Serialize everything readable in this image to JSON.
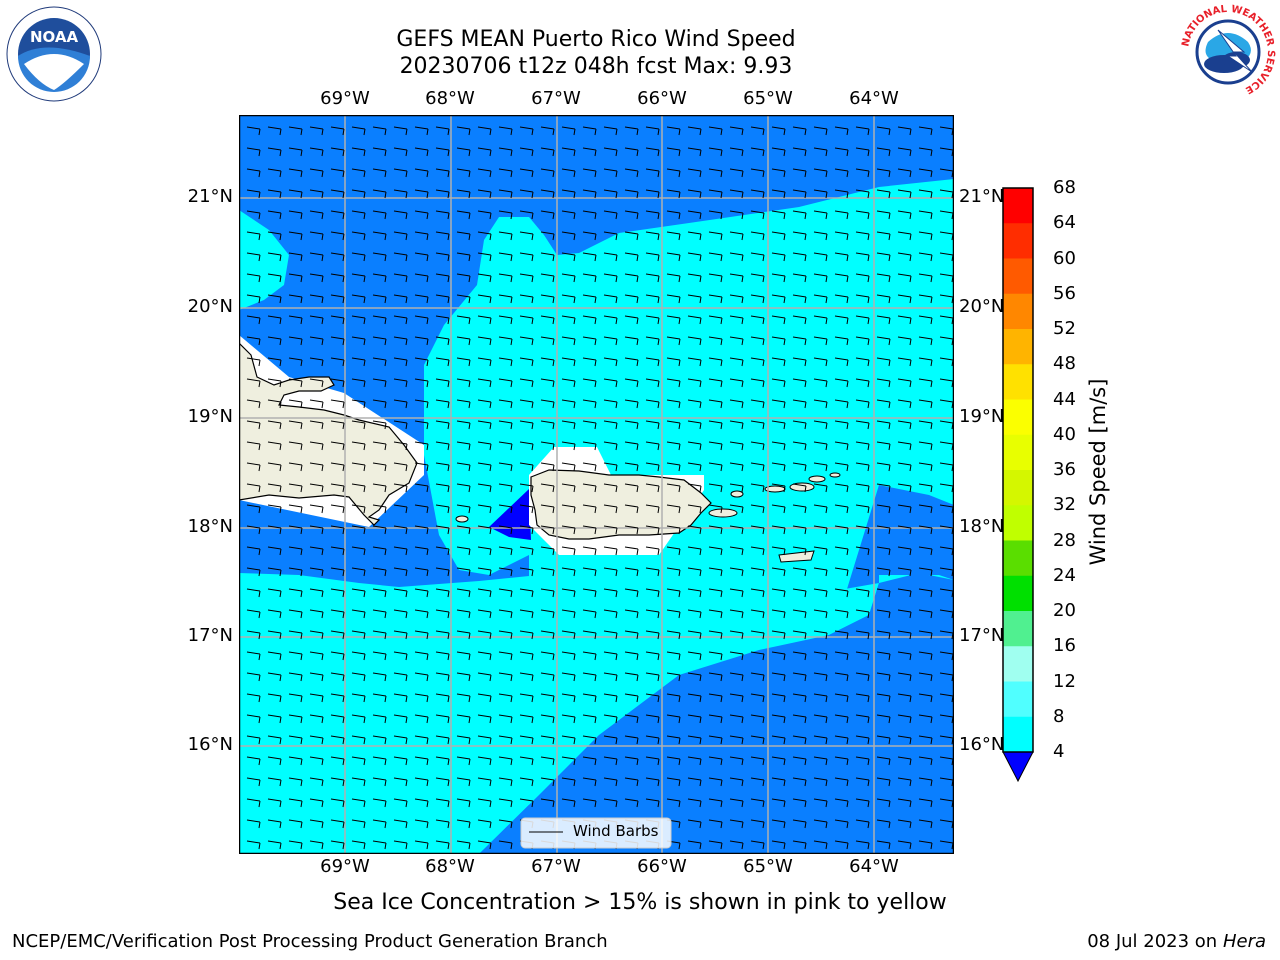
{
  "header": {
    "title_line1": "GEFS MEAN Puerto Rico Wind Speed",
    "title_line2": "20230706 t12z 048h fcst   Max: 9.93"
  },
  "logos": {
    "left": {
      "name": "noaa-logo",
      "text": "NOAA"
    },
    "right": {
      "name": "nws-logo",
      "text": "NATIONAL WEATHER SERVICE"
    }
  },
  "map": {
    "lon_labels": [
      "69°W",
      "68°W",
      "67°W",
      "66°W",
      "65°W",
      "64°W"
    ],
    "lat_labels": [
      "21°N",
      "20°N",
      "19°N",
      "18°N",
      "17°N",
      "16°N"
    ],
    "legend_label": "Wind Barbs"
  },
  "colorbar": {
    "title": "Wind Speed [m/s]",
    "ticks": [
      "68",
      "64",
      "60",
      "56",
      "52",
      "48",
      "44",
      "40",
      "36",
      "32",
      "28",
      "24",
      "20",
      "16",
      "12",
      "8",
      "4"
    ],
    "colors": [
      "#ff0000",
      "#ff2d00",
      "#ff5a00",
      "#ff8700",
      "#ffb400",
      "#ffe100",
      "#fbff00",
      "#e8ff00",
      "#d4f700",
      "#c0ff00",
      "#5ade00",
      "#00e000",
      "#50f090",
      "#a0fff0",
      "#50ffff",
      "#00ffff",
      "#0a7fff"
    ],
    "under_color": "#0000ff"
  },
  "footer": {
    "caption": "Sea Ice Concentration > 15% is shown in pink to yellow",
    "credit": "NCEP/EMC/Verification Post Processing Product Generation Branch",
    "date_prefix": "08 Jul 2023 on ",
    "date_machine": "Hera"
  },
  "colors": {
    "wind_4_8": "#0a7fff",
    "wind_8_12": "#00ffff",
    "wind_below_4": "#0000ff",
    "land": "#efefdf",
    "gridline": "#b0b0b0"
  }
}
